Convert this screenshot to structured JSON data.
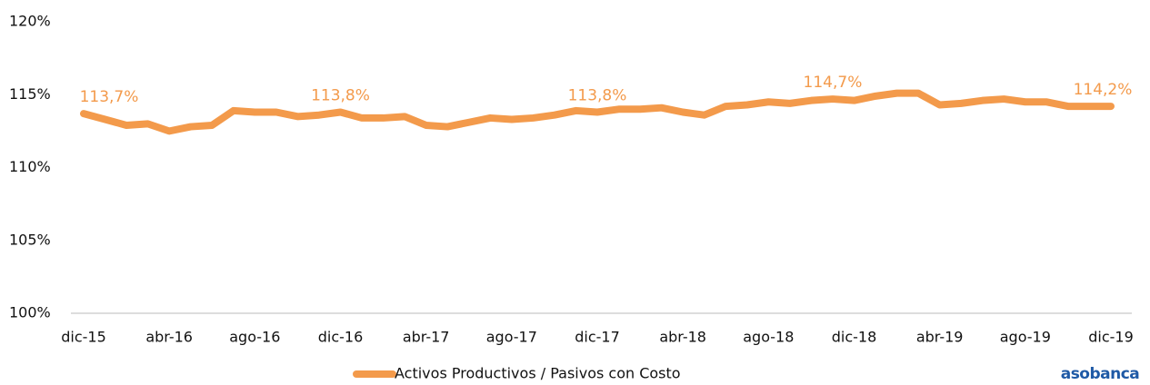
{
  "chart_data": {
    "type": "line",
    "categories": [
      "dic-15",
      null,
      null,
      null,
      "abr-16",
      null,
      null,
      null,
      "ago-16",
      null,
      null,
      null,
      "dic-16",
      null,
      null,
      null,
      "abr-17",
      null,
      null,
      null,
      "ago-17",
      null,
      null,
      null,
      "dic-17",
      null,
      null,
      null,
      "abr-18",
      null,
      null,
      null,
      "ago-18",
      null,
      null,
      null,
      "dic-18",
      null,
      null,
      null,
      "abr-19",
      null,
      null,
      null,
      "ago-19",
      null,
      null,
      null,
      "dic-19"
    ],
    "series": [
      {
        "name": "Activos Productivos / Pasivos con Costo",
        "color": "#f39a4b",
        "values": [
          113.7,
          113.3,
          112.9,
          113.0,
          112.5,
          112.8,
          112.9,
          113.9,
          113.8,
          113.8,
          113.5,
          113.6,
          113.8,
          113.4,
          113.4,
          113.5,
          112.9,
          112.8,
          113.1,
          113.4,
          113.3,
          113.4,
          113.6,
          113.9,
          113.8,
          114.0,
          114.0,
          114.1,
          113.8,
          113.6,
          114.2,
          114.3,
          114.5,
          114.4,
          114.6,
          114.7,
          114.6,
          114.9,
          115.1,
          115.1,
          114.3,
          114.4,
          114.6,
          114.7,
          114.5,
          114.5,
          114.2,
          114.2,
          114.2
        ],
        "value_labels": [
          "113,7%",
          null,
          null,
          null,
          null,
          null,
          null,
          null,
          null,
          null,
          null,
          null,
          "113,8%",
          null,
          null,
          null,
          null,
          null,
          null,
          null,
          null,
          null,
          null,
          null,
          "113,8%",
          null,
          null,
          null,
          null,
          null,
          null,
          null,
          null,
          null,
          null,
          "114,7%",
          null,
          null,
          null,
          null,
          null,
          null,
          null,
          null,
          null,
          null,
          null,
          null,
          "114,2%"
        ]
      }
    ],
    "ylim": [
      100,
      120
    ],
    "yticks": [
      {
        "value": 100,
        "label": "100%"
      },
      {
        "value": 105,
        "label": "105%"
      },
      {
        "value": 110,
        "label": "110%"
      },
      {
        "value": 115,
        "label": "115%"
      },
      {
        "value": 120,
        "label": "120%"
      }
    ],
    "grid": false,
    "legend": "bottom",
    "logo": "asobanca"
  }
}
